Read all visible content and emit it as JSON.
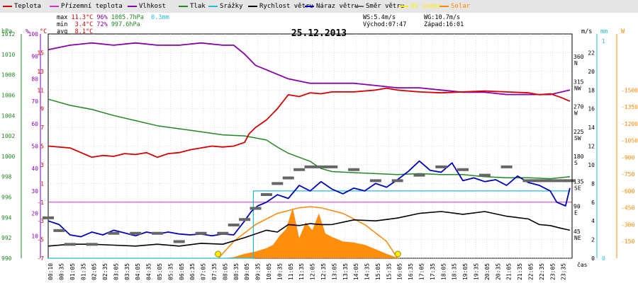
{
  "legend": [
    {
      "label": "Teplota",
      "color": "#d40000"
    },
    {
      "label": "Přízemní teplota",
      "color": "#cc33cc"
    },
    {
      "label": "Vlhkost",
      "color": "#8800aa"
    },
    {
      "label": "Tlak",
      "color": "#228822"
    },
    {
      "label": "Srážky",
      "color": "#22bbdd"
    },
    {
      "label": "Rychlost větru",
      "color": "#000000"
    },
    {
      "label": "Náraz větru",
      "color": "#0000bb"
    },
    {
      "label": "Směr větru",
      "color": "#666666"
    },
    {
      "label": "UV index",
      "color": "#ffee00"
    },
    {
      "label": "Solar",
      "color": "#ff8800"
    }
  ],
  "stats": {
    "max": {
      "label": "max",
      "temp": "11.3°C",
      "hum": "96%",
      "press": "1005.7hPa",
      "rain": "0.3mm"
    },
    "min": {
      "label": "min",
      "temp": "3.4°C",
      "hum": "72%",
      "press": "997.6hPa"
    },
    "avg": {
      "label": "avg",
      "temp": "8.1°C"
    }
  },
  "info": {
    "ws": "WS:5.4m/s",
    "wg": "WG:10.7m/s",
    "sunrise": "Východ:07:47",
    "sunset": "Západ:16:01"
  },
  "date": "25.12.2013",
  "units": {
    "hpa": "hPa",
    "pct": "%",
    "degc": "°C",
    "ms": "m/s",
    "mm": "mm",
    "w": "W",
    "time": "čas"
  },
  "colors": {
    "temp": "#d40000",
    "ground": "#cc33cc",
    "hum": "#8800aa",
    "press": "#228822",
    "rain": "#22bbdd",
    "wind": "#000000",
    "gust": "#0000bb",
    "dir": "#666666",
    "uv": "#ffee00",
    "solar": "#ff8800",
    "grid": "#cccccc"
  },
  "chart_data": {
    "type": "line",
    "title": "25.12.2013",
    "x_ticks": [
      "00:10",
      "00:35",
      "01:05",
      "01:35",
      "02:05",
      "02:35",
      "03:05",
      "03:35",
      "04:05",
      "04:35",
      "05:05",
      "05:35",
      "06:05",
      "06:35",
      "07:05",
      "07:35",
      "08:05",
      "08:35",
      "09:05",
      "09:35",
      "10:05",
      "10:35",
      "11:05",
      "11:35",
      "12:05",
      "12:35",
      "13:05",
      "13:35",
      "14:05",
      "14:35",
      "15:05",
      "15:35",
      "16:05",
      "16:35",
      "17:05",
      "17:35",
      "18:05",
      "18:35",
      "19:05",
      "19:35",
      "20:05",
      "20:35",
      "21:05",
      "21:35",
      "22:05",
      "22:35",
      "23:05",
      "23:35"
    ],
    "axes": {
      "hpa": {
        "ticks": [
          "990",
          "992",
          "994",
          "996",
          "998",
          "1000",
          "1002",
          "1004",
          "1006",
          "1008",
          "1010",
          "1012"
        ],
        "range": [
          990,
          1012
        ]
      },
      "pct": {
        "ticks": [
          "10",
          "20",
          "30",
          "40",
          "50",
          "60",
          "70",
          "80",
          "90",
          "100"
        ],
        "range": [
          0,
          100
        ]
      },
      "degc": {
        "ticks": [
          "-7",
          "-5",
          "-3",
          "-1",
          "1",
          "3",
          "5",
          "7",
          "9",
          "11",
          "13",
          "15"
        ],
        "range": [
          -7,
          17
        ]
      },
      "wind_dir": {
        "ticks": [
          "45 NE",
          "90 E",
          "135 SE",
          "180 S",
          "225 SW",
          "270 W",
          "315 NW",
          "360 N"
        ],
        "range": [
          0,
          405
        ]
      },
      "ms": {
        "ticks": [
          "0",
          "2",
          "4",
          "6",
          "8",
          "10",
          "12",
          "14",
          "16",
          "18",
          "20",
          "22"
        ],
        "range": [
          0,
          24
        ]
      },
      "mm": {
        "ticks": [
          "0",
          "1"
        ],
        "range": [
          0,
          1
        ]
      },
      "w": {
        "ticks": [
          "150",
          "300",
          "450",
          "600",
          "750",
          "900",
          "1050",
          "1200",
          "1350",
          "1500"
        ],
        "range": [
          0,
          2000
        ]
      }
    },
    "ground_temp_line": -1,
    "series": [
      {
        "name": "Teplota",
        "axis": "degc",
        "points": [
          [
            0,
            5
          ],
          [
            1,
            4.8
          ],
          [
            2,
            3.8
          ],
          [
            2.5,
            4
          ],
          [
            3,
            3.9
          ],
          [
            3.5,
            4.2
          ],
          [
            4,
            4.1
          ],
          [
            4.5,
            4.3
          ],
          [
            5,
            3.8
          ],
          [
            5.5,
            4.2
          ],
          [
            6,
            4.3
          ],
          [
            6.5,
            4.6
          ],
          [
            7,
            4.8
          ],
          [
            7.5,
            5
          ],
          [
            8,
            4.9
          ],
          [
            8.5,
            5
          ],
          [
            9,
            5.4
          ],
          [
            9.2,
            6.3
          ],
          [
            9.5,
            7
          ],
          [
            10,
            7.8
          ],
          [
            10.5,
            9
          ],
          [
            11,
            10.5
          ],
          [
            11.5,
            10.3
          ],
          [
            12,
            10.7
          ],
          [
            12.5,
            10.6
          ],
          [
            13,
            10.8
          ],
          [
            14,
            10.8
          ],
          [
            15,
            11
          ],
          [
            15.5,
            11.2
          ],
          [
            16,
            11
          ],
          [
            16.5,
            10.9
          ],
          [
            17,
            10.8
          ],
          [
            18,
            10.7
          ],
          [
            19,
            10.8
          ],
          [
            20,
            10.9
          ],
          [
            21,
            10.8
          ],
          [
            22,
            10.7
          ],
          [
            22.5,
            10.5
          ],
          [
            23,
            10.6
          ],
          [
            23.5,
            10.2
          ],
          [
            23.9,
            9.8
          ]
        ]
      },
      {
        "name": "Vlhkost",
        "axis": "pct",
        "points": [
          [
            0,
            93
          ],
          [
            1,
            95
          ],
          [
            2,
            96
          ],
          [
            3,
            95
          ],
          [
            4,
            96
          ],
          [
            5,
            95
          ],
          [
            6,
            95
          ],
          [
            7,
            96
          ],
          [
            8,
            95
          ],
          [
            8.5,
            95
          ],
          [
            9,
            91
          ],
          [
            9.5,
            86
          ],
          [
            10,
            84
          ],
          [
            10.5,
            82
          ],
          [
            11,
            80
          ],
          [
            12,
            78
          ],
          [
            13,
            78
          ],
          [
            14,
            78
          ],
          [
            15,
            77
          ],
          [
            16,
            76
          ],
          [
            17,
            76
          ],
          [
            18,
            75
          ],
          [
            19,
            74
          ],
          [
            20,
            74
          ],
          [
            21,
            73
          ],
          [
            22,
            73
          ],
          [
            23,
            73
          ],
          [
            23.9,
            75
          ]
        ]
      },
      {
        "name": "Tlak",
        "axis": "hpa",
        "points": [
          [
            0,
            1005.6
          ],
          [
            1,
            1005
          ],
          [
            2,
            1004.6
          ],
          [
            3,
            1004
          ],
          [
            4,
            1003.5
          ],
          [
            5,
            1003
          ],
          [
            6,
            1002.7
          ],
          [
            7,
            1002.4
          ],
          [
            8,
            1002.1
          ],
          [
            9,
            1002
          ],
          [
            10,
            1001.6
          ],
          [
            10.5,
            1000.9
          ],
          [
            11,
            1000.3
          ],
          [
            12,
            999.5
          ],
          [
            12.5,
            998.8
          ],
          [
            13,
            998.5
          ],
          [
            14,
            998.4
          ],
          [
            15,
            998.3
          ],
          [
            16,
            998.2
          ],
          [
            17,
            998.3
          ],
          [
            18,
            998.2
          ],
          [
            19,
            998.2
          ],
          [
            20,
            998.0
          ],
          [
            21,
            997.9
          ],
          [
            22,
            997.9
          ],
          [
            23,
            997.8
          ],
          [
            23.9,
            998.0
          ]
        ]
      },
      {
        "name": "Srážky",
        "axis": "mm",
        "points": [
          [
            0,
            0
          ],
          [
            9.4,
            0
          ],
          [
            9.4,
            0.3
          ],
          [
            23.9,
            0.3
          ]
        ]
      },
      {
        "name": "Rychlost větru",
        "axis": "ms",
        "points": [
          [
            0,
            1.3
          ],
          [
            1,
            1.5
          ],
          [
            2,
            1.5
          ],
          [
            3,
            1.4
          ],
          [
            4,
            1.3
          ],
          [
            5,
            1.5
          ],
          [
            6,
            1.3
          ],
          [
            7,
            1.6
          ],
          [
            8,
            1.5
          ],
          [
            9,
            2.2
          ],
          [
            10,
            3
          ],
          [
            10.5,
            2.8
          ],
          [
            11,
            3.6
          ],
          [
            11.5,
            3.5
          ],
          [
            12,
            3.7
          ],
          [
            12.5,
            3.6
          ],
          [
            13,
            3.6
          ],
          [
            14,
            4.1
          ],
          [
            15,
            4
          ],
          [
            16,
            4.3
          ],
          [
            17,
            4.8
          ],
          [
            18,
            5
          ],
          [
            19,
            4.7
          ],
          [
            20,
            5
          ],
          [
            21,
            4.5
          ],
          [
            22,
            4.2
          ],
          [
            22.5,
            3.6
          ],
          [
            23,
            3.5
          ],
          [
            23.5,
            3.2
          ],
          [
            23.9,
            3
          ]
        ]
      },
      {
        "name": "Náraz větru",
        "axis": "ms",
        "points": [
          [
            0,
            4
          ],
          [
            0.5,
            3.6
          ],
          [
            1,
            2.5
          ],
          [
            1.5,
            2.3
          ],
          [
            2,
            2.8
          ],
          [
            2.5,
            2.5
          ],
          [
            3,
            3
          ],
          [
            3.5,
            2.7
          ],
          [
            4,
            2.4
          ],
          [
            4.5,
            2.8
          ],
          [
            5,
            2.6
          ],
          [
            5.5,
            2.8
          ],
          [
            6,
            2.6
          ],
          [
            6.5,
            2.5
          ],
          [
            7,
            2.6
          ],
          [
            7.5,
            2.4
          ],
          [
            8,
            2.6
          ],
          [
            8.5,
            2.5
          ],
          [
            9,
            4
          ],
          [
            9.3,
            5
          ],
          [
            9.6,
            5.6
          ],
          [
            10,
            6
          ],
          [
            10.5,
            6.8
          ],
          [
            11,
            6.4
          ],
          [
            11.5,
            7.8
          ],
          [
            12,
            7.2
          ],
          [
            12.5,
            8.2
          ],
          [
            13,
            7.4
          ],
          [
            13.5,
            6.9
          ],
          [
            14,
            7.5
          ],
          [
            14.5,
            7.2
          ],
          [
            15,
            8
          ],
          [
            15.5,
            7.6
          ],
          [
            16,
            8.4
          ],
          [
            16.5,
            9.3
          ],
          [
            17,
            10.4
          ],
          [
            17.5,
            9.4
          ],
          [
            18,
            9.2
          ],
          [
            18.5,
            10.2
          ],
          [
            19,
            8.3
          ],
          [
            19.5,
            8.6
          ],
          [
            20,
            8.2
          ],
          [
            20.5,
            8.4
          ],
          [
            21,
            7.8
          ],
          [
            21.5,
            8.8
          ],
          [
            22,
            8.1
          ],
          [
            22.5,
            7.8
          ],
          [
            23,
            7.2
          ],
          [
            23.3,
            6
          ],
          [
            23.7,
            5.6
          ],
          [
            23.9,
            7.5
          ]
        ]
      },
      {
        "name": "Směr větru",
        "axis": "wind_dir",
        "points": [
          [
            0,
            73
          ],
          [
            0.5,
            50
          ],
          [
            1,
            25
          ],
          [
            2,
            25
          ],
          [
            3,
            45
          ],
          [
            4,
            45
          ],
          [
            5,
            45
          ],
          [
            6,
            30
          ],
          [
            7,
            45
          ],
          [
            8,
            45
          ],
          [
            8.5,
            60
          ],
          [
            9,
            70
          ],
          [
            9.5,
            90
          ],
          [
            10,
            115
          ],
          [
            10.5,
            135
          ],
          [
            11,
            145
          ],
          [
            11.5,
            160
          ],
          [
            12,
            165
          ],
          [
            12.5,
            165
          ],
          [
            13,
            165
          ],
          [
            14,
            160
          ],
          [
            15,
            140
          ],
          [
            16,
            140
          ],
          [
            17,
            150
          ],
          [
            18,
            165
          ],
          [
            19,
            160
          ],
          [
            20,
            150
          ],
          [
            21,
            165
          ],
          [
            22,
            140
          ],
          [
            22.5,
            140
          ],
          [
            23,
            140
          ],
          [
            23.5,
            140
          ],
          [
            23.9,
            140
          ]
        ]
      },
      {
        "name": "Solar",
        "axis": "w",
        "points": [
          [
            8.0,
            0
          ],
          [
            8.5,
            10
          ],
          [
            9,
            40
          ],
          [
            9.5,
            60
          ],
          [
            10,
            90
          ],
          [
            10.3,
            120
          ],
          [
            10.6,
            200
          ],
          [
            10.9,
            260
          ],
          [
            11.2,
            450
          ],
          [
            11.5,
            180
          ],
          [
            11.8,
            320
          ],
          [
            12.1,
            250
          ],
          [
            12.4,
            400
          ],
          [
            12.7,
            220
          ],
          [
            13,
            190
          ],
          [
            13.5,
            150
          ],
          [
            14,
            140
          ],
          [
            14.5,
            120
          ],
          [
            15,
            80
          ],
          [
            15.5,
            40
          ],
          [
            16,
            5
          ],
          [
            16.1,
            0
          ]
        ]
      },
      {
        "name": "Solar max",
        "axis": "w",
        "points": [
          [
            7.8,
            0
          ],
          [
            8.5,
            150
          ],
          [
            9.5,
            300
          ],
          [
            10.5,
            400
          ],
          [
            11.5,
            450
          ],
          [
            12,
            460
          ],
          [
            12.5,
            450
          ],
          [
            13.5,
            400
          ],
          [
            14.5,
            300
          ],
          [
            15.5,
            150
          ],
          [
            16.0,
            0
          ]
        ]
      }
    ]
  }
}
